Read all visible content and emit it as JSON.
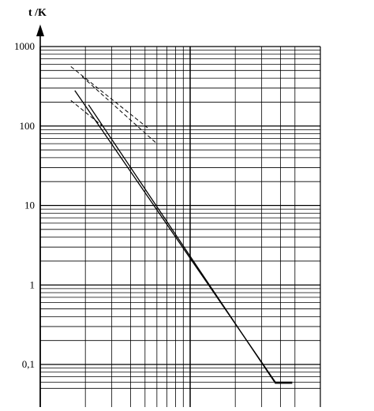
{
  "chart_data": {
    "type": "line",
    "title": "",
    "ylabel": "t /K",
    "xlabel": "",
    "y_scale": "log",
    "x_scale": "log",
    "ylim": [
      0.05,
      1000
    ],
    "xlim": [
      1,
      50
    ],
    "y_tick_labels": [
      "1000",
      "100",
      "10",
      "1",
      "0,1"
    ],
    "y_ticks": [
      1000,
      100,
      10,
      1,
      0.1
    ],
    "grid": true,
    "legend": "none",
    "series": [
      {
        "style": "solid",
        "x": [
          1.7,
          37,
          48
        ],
        "y": [
          280,
          0.06,
          0.06
        ]
      },
      {
        "style": "solid",
        "x": [
          2.1,
          37,
          48
        ],
        "y": [
          185,
          0.058,
          0.058
        ]
      },
      {
        "style": "dashed",
        "x": [
          1.6,
          5.2
        ],
        "y": [
          560,
          95
        ]
      },
      {
        "style": "dashed",
        "x": [
          1.9,
          6.0
        ],
        "y": [
          420,
          60
        ]
      },
      {
        "style": "dashed",
        "x": [
          1.6,
          2.6
        ],
        "y": [
          210,
          100
        ]
      }
    ]
  }
}
